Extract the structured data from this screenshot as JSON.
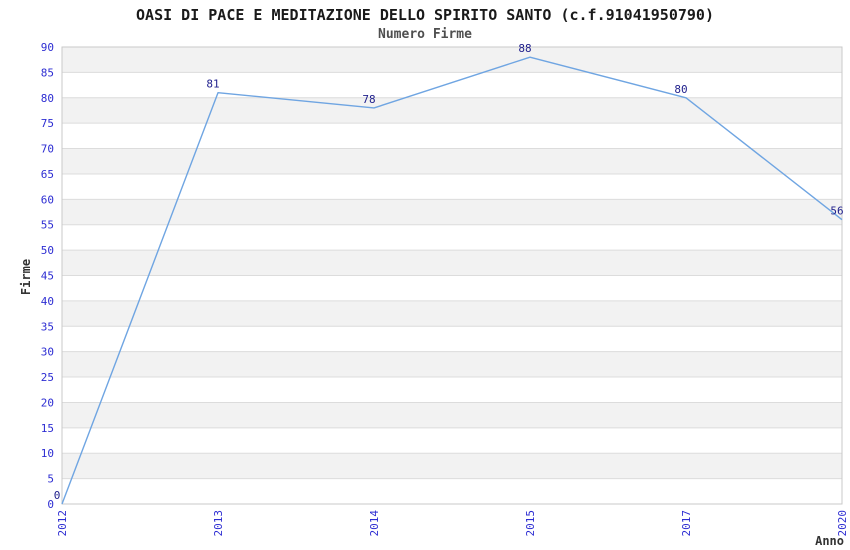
{
  "chart_data": {
    "type": "line",
    "title": "OASI DI PACE E MEDITAZIONE DELLO SPIRITO SANTO (c.f.91041950790)",
    "subtitle": "Numero Firme",
    "xlabel": "Anno",
    "ylabel": "Firme",
    "categories": [
      "2012",
      "2013",
      "2014",
      "2015",
      "2017",
      "2020"
    ],
    "values": [
      0,
      81,
      78,
      88,
      80,
      56
    ],
    "point_labels": [
      "0",
      "81",
      "78",
      "88",
      "80",
      "56"
    ],
    "ylim": [
      0,
      90
    ],
    "ytick_step": 5,
    "grid": true,
    "legend": "none",
    "band_style": "alternating-horizontal",
    "x_tick_rotation": -90,
    "colors": {
      "line": "#6fa5e2",
      "tick_label": "#2d2dd2",
      "point_label": "#1f1f8c",
      "band": "#f2f2f2",
      "grid": "#dcdcdc",
      "frame": "#c9c9c9",
      "title": "#1a1a1a",
      "subtitle": "#4f4f4f",
      "axis_label": "#333333",
      "background": "#ffffff"
    }
  }
}
